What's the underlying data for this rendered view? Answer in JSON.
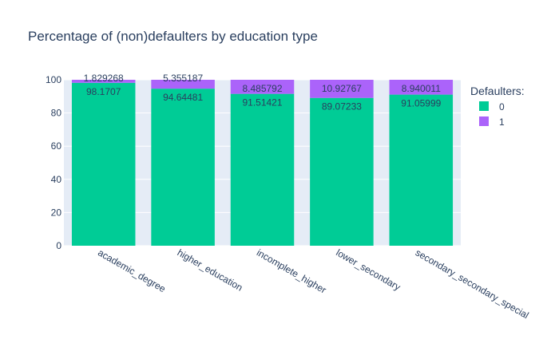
{
  "chart_data": {
    "type": "bar",
    "stacked": true,
    "title": "Percentage of (non)defaulters by education type",
    "xlabel": "",
    "ylabel": "",
    "ylim": [
      0,
      100
    ],
    "yticks": [
      0,
      20,
      40,
      60,
      80,
      100
    ],
    "grid": true,
    "legend_placement": "top-right",
    "legend_title": "Defaulters:",
    "categories": [
      "academic_degree",
      "higher_education",
      "incomplete_higher",
      "lower_secondary",
      "secondary_secondary_special"
    ],
    "series": [
      {
        "name": "0",
        "color": "#00cc96",
        "values": [
          98.1707,
          94.64481,
          91.51421,
          89.07233,
          91.05999
        ],
        "labels": [
          "98.1707",
          "94.64481",
          "91.51421",
          "89.07233",
          "91.05999"
        ]
      },
      {
        "name": "1",
        "color": "#ab63fa",
        "values": [
          1.829268,
          5.355187,
          8.485792,
          10.92767,
          8.940011
        ],
        "labels": [
          "1.829268",
          "5.355187",
          "8.485792",
          "10.92767",
          "8.940011"
        ]
      }
    ],
    "plot_background": "#e5ecf6"
  }
}
